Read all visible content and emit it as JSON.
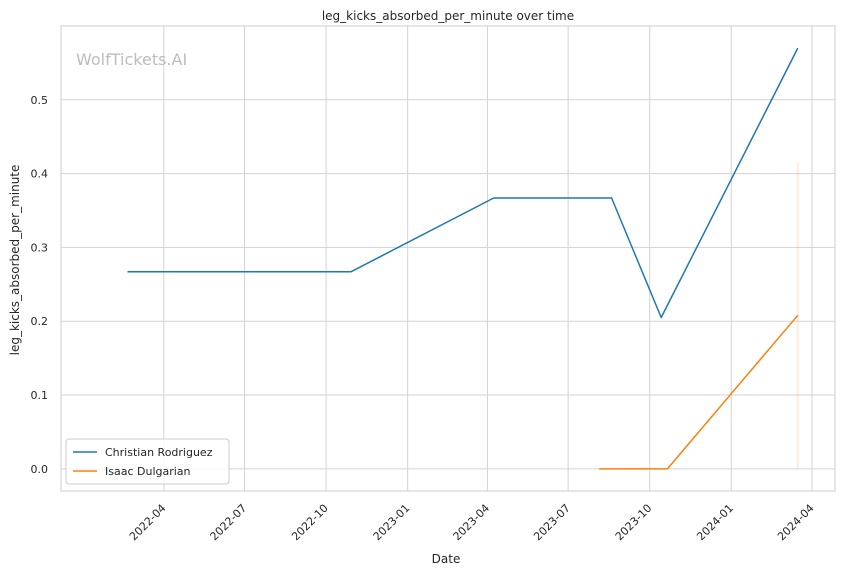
{
  "chart_data": {
    "type": "line",
    "title": "leg_kicks_absorbed_per_minute over time",
    "xlabel": "Date",
    "ylabel": "leg_kicks_absorbed_per_minute",
    "watermark": "WolfTickets.AI",
    "x_ticks": [
      "2022-04",
      "2022-07",
      "2022-10",
      "2023-01",
      "2023-04",
      "2023-07",
      "2023-10",
      "2024-01",
      "2024-04"
    ],
    "xlim": [
      "2021-12-06",
      "2024-04-27"
    ],
    "y_ticks": [
      0.0,
      0.1,
      0.2,
      0.3,
      0.4,
      0.5
    ],
    "y_tick_labels": [
      "0.0",
      "0.1",
      "0.2",
      "0.3",
      "0.4",
      "0.5"
    ],
    "ylim": [
      -0.03,
      0.6
    ],
    "grid": true,
    "legend_position": "lower-left",
    "series": [
      {
        "name": "Christian Rodriguez",
        "color": "#1f77b4",
        "x": [
          "2022-02-19",
          "2022-10-29",
          "2023-04-08",
          "2023-08-19",
          "2023-10-14",
          "2024-03-16"
        ],
        "y": [
          0.267,
          0.267,
          0.367,
          0.367,
          0.205,
          0.57
        ]
      },
      {
        "name": "Isaac Dulgarian",
        "color": "#ff7f0e",
        "x": [
          "2023-08-05",
          "2023-10-21",
          "2024-03-16"
        ],
        "y": [
          0.0,
          0.0,
          0.208
        ]
      }
    ],
    "annotations": [
      {
        "type": "vertical_band",
        "x": "2024-03-16",
        "y_range": [
          0.0,
          0.415
        ],
        "color": "#ff7f0e"
      }
    ]
  }
}
